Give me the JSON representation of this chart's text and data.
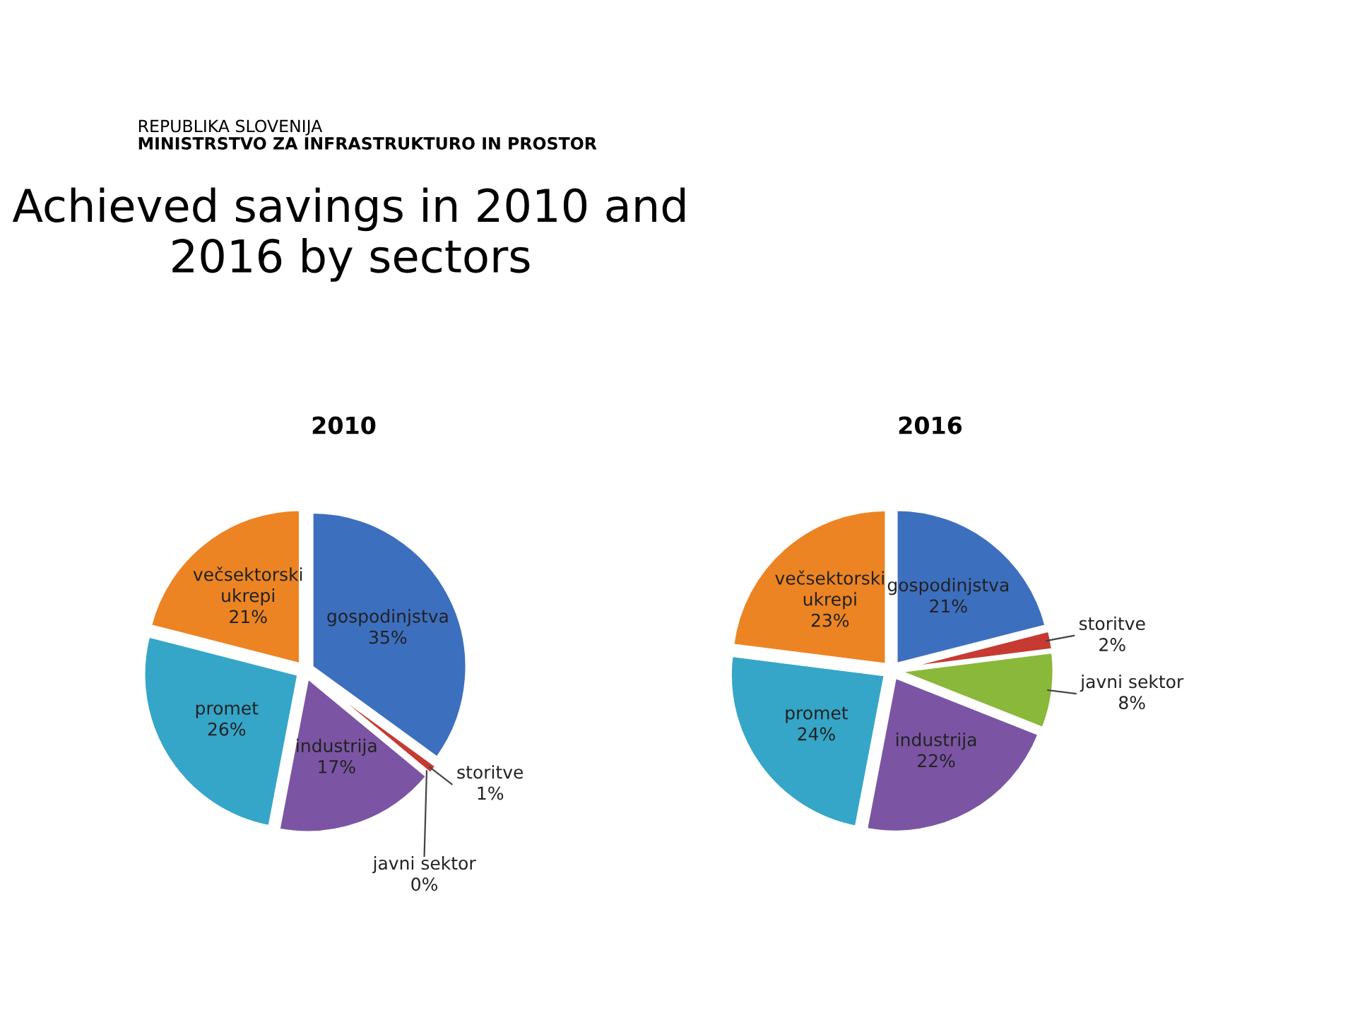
{
  "chart_data": [
    {
      "type": "pie",
      "title": "2010",
      "annotations": [
        "REPUBLIKA SLOVENIJA",
        "MINISTRSTVO ZA INFRASTRUKTURO IN PROSTOR",
        "Achieved savings in 2010 and 2016 by sectors"
      ],
      "categories": [
        "gospodinjstva",
        "storitve",
        "javni sektor",
        "industrija",
        "promet",
        "večsektorski ukrepi"
      ],
      "values": [
        35,
        1,
        0,
        17,
        26,
        21
      ],
      "value_labels": [
        "35%",
        "1%",
        "0%",
        "17%",
        "26%",
        "21%"
      ],
      "colors": [
        "#3d6fbf",
        "#c63a32",
        "#8ab83a",
        "#7b55a3",
        "#35a6c8",
        "#ec8424"
      ],
      "data_labels": true
    },
    {
      "type": "pie",
      "title": "2016",
      "categories": [
        "gospodinjstva",
        "storitve",
        "javni sektor",
        "industrija",
        "promet",
        "večsektorski ukrepi"
      ],
      "values": [
        21,
        2,
        8,
        22,
        24,
        23
      ],
      "value_labels": [
        "21%",
        "2%",
        "8%",
        "22%",
        "24%",
        "23%"
      ],
      "colors": [
        "#3d6fbf",
        "#c63a32",
        "#8ab83a",
        "#7b55a3",
        "#35a6c8",
        "#ec8424"
      ],
      "data_labels": true
    }
  ]
}
